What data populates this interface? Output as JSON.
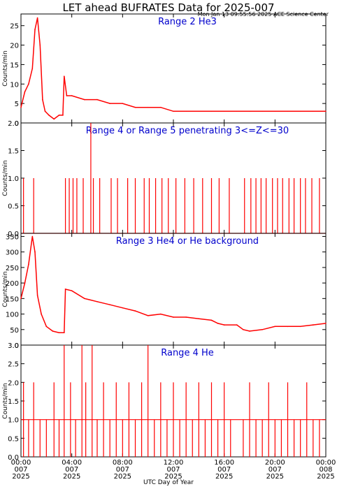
{
  "title": "LET ahead BUFRATES Data for 2025-007",
  "timestamp": "Mon Jan 13 09:55:56 2025 ACE Science Center",
  "xlabel": "UTC Day of Year",
  "colors": {
    "trace": "#ff0000",
    "panel_title": "#0000cc",
    "axes": "#000000"
  },
  "x_ticks": [
    {
      "time": "00:00",
      "day": "007",
      "year": "2025",
      "hour": 0
    },
    {
      "time": "04:00",
      "day": "007",
      "year": "2025",
      "hour": 4
    },
    {
      "time": "08:00",
      "day": "007",
      "year": "2025",
      "hour": 8
    },
    {
      "time": "12:00",
      "day": "007",
      "year": "2025",
      "hour": 12
    },
    {
      "time": "16:00",
      "day": "007",
      "year": "2025",
      "hour": 16
    },
    {
      "time": "20:00",
      "day": "007",
      "year": "2025",
      "hour": 20
    },
    {
      "time": "00:00",
      "day": "008",
      "year": "2025",
      "hour": 24
    }
  ],
  "chart_data": [
    {
      "type": "line",
      "title": "Range 2 He3",
      "ylabel": "Counts/min",
      "xlim": [
        0,
        24
      ],
      "ylim": [
        0,
        28
      ],
      "yticks": [
        "0",
        "5",
        "10",
        "15",
        "20",
        "25"
      ],
      "series": [
        {
          "x": [
            0,
            0.3,
            0.6,
            0.9,
            1.1,
            1.3,
            1.5,
            1.7,
            1.9,
            2.2,
            2.6,
            3.0,
            3.3,
            3.4,
            3.6,
            4.0,
            5.0,
            6.0,
            7.0,
            8.0,
            9.0,
            10.0,
            11.0,
            12.0,
            13.0,
            14.0,
            15.0,
            16.0,
            17.0,
            18.0,
            19.0,
            20.0,
            21.0,
            22.0,
            23.0,
            24.0
          ],
          "y": [
            4,
            8,
            10,
            14,
            24,
            27,
            20,
            6,
            3,
            2,
            1,
            2,
            2,
            12,
            7,
            7,
            6,
            6,
            5,
            5,
            4,
            4,
            4,
            3,
            3,
            3,
            3,
            3,
            3,
            3,
            3,
            3,
            3,
            3,
            3,
            3
          ]
        }
      ]
    },
    {
      "type": "line",
      "title": "Range 4 or Range 5 penetrating 3<=Z<=30",
      "ylabel": "Counts/min",
      "xlim": [
        0,
        24
      ],
      "ylim": [
        0,
        2.0
      ],
      "yticks": [
        "0.0",
        "0.5",
        "1.0",
        "1.5",
        "2.0"
      ],
      "series": [
        {
          "x": [
            0.2,
            1.0,
            3.5,
            3.8,
            4.1,
            4.4,
            4.9,
            5.5,
            5.7,
            6.2,
            7.1,
            7.6,
            8.4,
            9.0,
            9.7,
            10.1,
            10.6,
            11.1,
            11.6,
            12.2,
            12.9,
            13.6,
            14.3,
            15.0,
            15.6,
            16.4,
            17.6,
            18.1,
            18.5,
            18.9,
            19.3,
            19.8,
            20.2,
            20.6,
            21.1,
            21.5,
            22.0,
            22.4,
            22.9,
            23.5
          ],
          "y": [
            1,
            1,
            1,
            1,
            1,
            1,
            1,
            2,
            1,
            1,
            1,
            1,
            1,
            1,
            1,
            1,
            1,
            1,
            1,
            1,
            1,
            1,
            1,
            1,
            1,
            1,
            1,
            1,
            1,
            1,
            1,
            1,
            1,
            1,
            1,
            1,
            1,
            1,
            1,
            1
          ]
        }
      ]
    },
    {
      "type": "line",
      "title": "Range 3 He4 or He background",
      "ylabel": "Counts/min",
      "xlim": [
        0,
        24
      ],
      "ylim": [
        0,
        360
      ],
      "yticks": [
        "0",
        "50",
        "100",
        "150",
        "200",
        "250",
        "300",
        "350"
      ],
      "series": [
        {
          "x": [
            0,
            0.3,
            0.6,
            0.9,
            1.1,
            1.3,
            1.6,
            2.0,
            2.5,
            3.0,
            3.4,
            3.5,
            4.0,
            5.0,
            6.0,
            7.0,
            8.0,
            9.0,
            10.0,
            11.0,
            12.0,
            13.0,
            14.0,
            15.0,
            15.5,
            16.0,
            17.0,
            17.5,
            18.0,
            19.0,
            20.0,
            21.0,
            22.0,
            23.0,
            24.0
          ],
          "y": [
            150,
            200,
            260,
            350,
            300,
            160,
            100,
            60,
            45,
            40,
            40,
            180,
            175,
            150,
            140,
            130,
            120,
            110,
            95,
            100,
            90,
            90,
            85,
            80,
            70,
            65,
            65,
            50,
            45,
            50,
            60,
            60,
            60,
            65,
            70
          ]
        }
      ]
    },
    {
      "type": "line",
      "title": "Range 4 He",
      "ylabel": "Counts/min",
      "xlim": [
        0,
        24
      ],
      "ylim": [
        0,
        3.0
      ],
      "yticks": [
        "0.0",
        "0.5",
        "1.0",
        "1.5",
        "2.0",
        "2.5",
        "3.0"
      ],
      "series": [
        {
          "x": [
            0.2,
            0.6,
            1.0,
            1.5,
            2.0,
            2.6,
            3.0,
            3.4,
            3.9,
            4.3,
            4.8,
            5.1,
            5.6,
            6.0,
            6.5,
            7.0,
            7.5,
            8.0,
            8.5,
            9.0,
            9.5,
            10.0,
            10.5,
            11.0,
            11.5,
            12.0,
            12.5,
            13.0,
            13.5,
            14.0,
            14.5,
            15.0,
            15.5,
            16.0,
            16.5,
            17.0,
            17.5,
            18.0,
            18.5,
            19.0,
            19.5,
            20.0,
            20.5,
            21.0,
            21.5,
            22.0,
            22.5,
            23.0,
            23.5
          ],
          "y": [
            2,
            1,
            2,
            1,
            1,
            2,
            1,
            3,
            2,
            1,
            3,
            2,
            3,
            1,
            2,
            1,
            2,
            1,
            2,
            1,
            2,
            3,
            1,
            2,
            1,
            2,
            1,
            2,
            1,
            2,
            1,
            2,
            1,
            2,
            1,
            0,
            1,
            2,
            1,
            1,
            2,
            1,
            1,
            2,
            1,
            1,
            2,
            1,
            1
          ]
        }
      ]
    }
  ]
}
